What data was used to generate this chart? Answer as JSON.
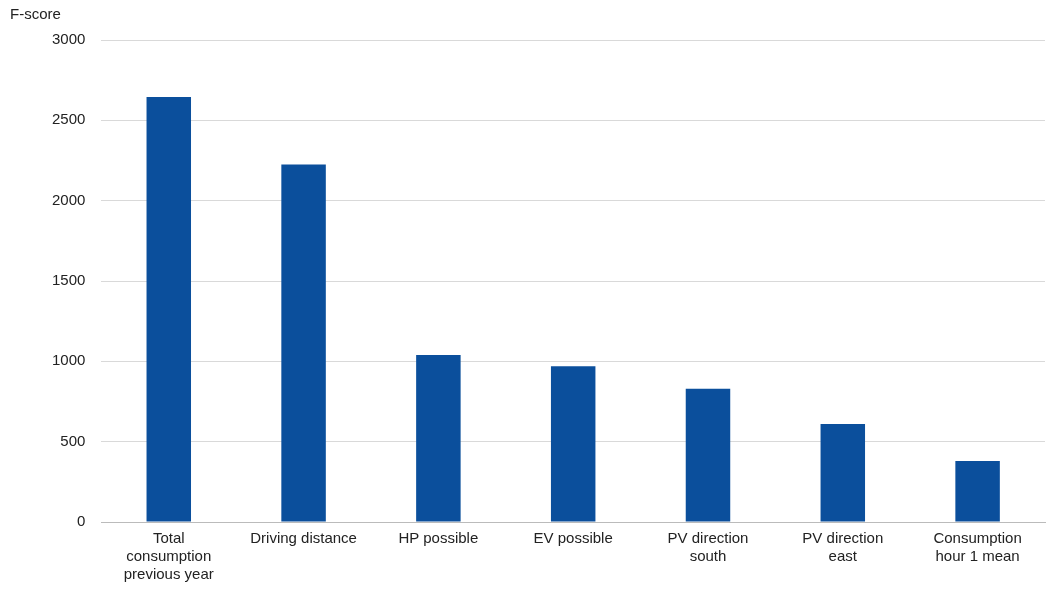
{
  "chart_data": {
    "type": "bar",
    "ylabel": "F-score",
    "categories": [
      "Total consumption previous year",
      "Driving distance",
      "HP possible",
      "EV possible",
      "PV direction south",
      "PV direction east",
      "Consumption hour 1 mean"
    ],
    "values": [
      2645,
      2225,
      1040,
      970,
      830,
      610,
      380
    ],
    "color": "#0b4f9c",
    "ylim": [
      0,
      3000
    ],
    "yticks": [
      0,
      500,
      1000,
      1500,
      2000,
      2500,
      3000
    ],
    "grid": "y",
    "legend": false
  }
}
